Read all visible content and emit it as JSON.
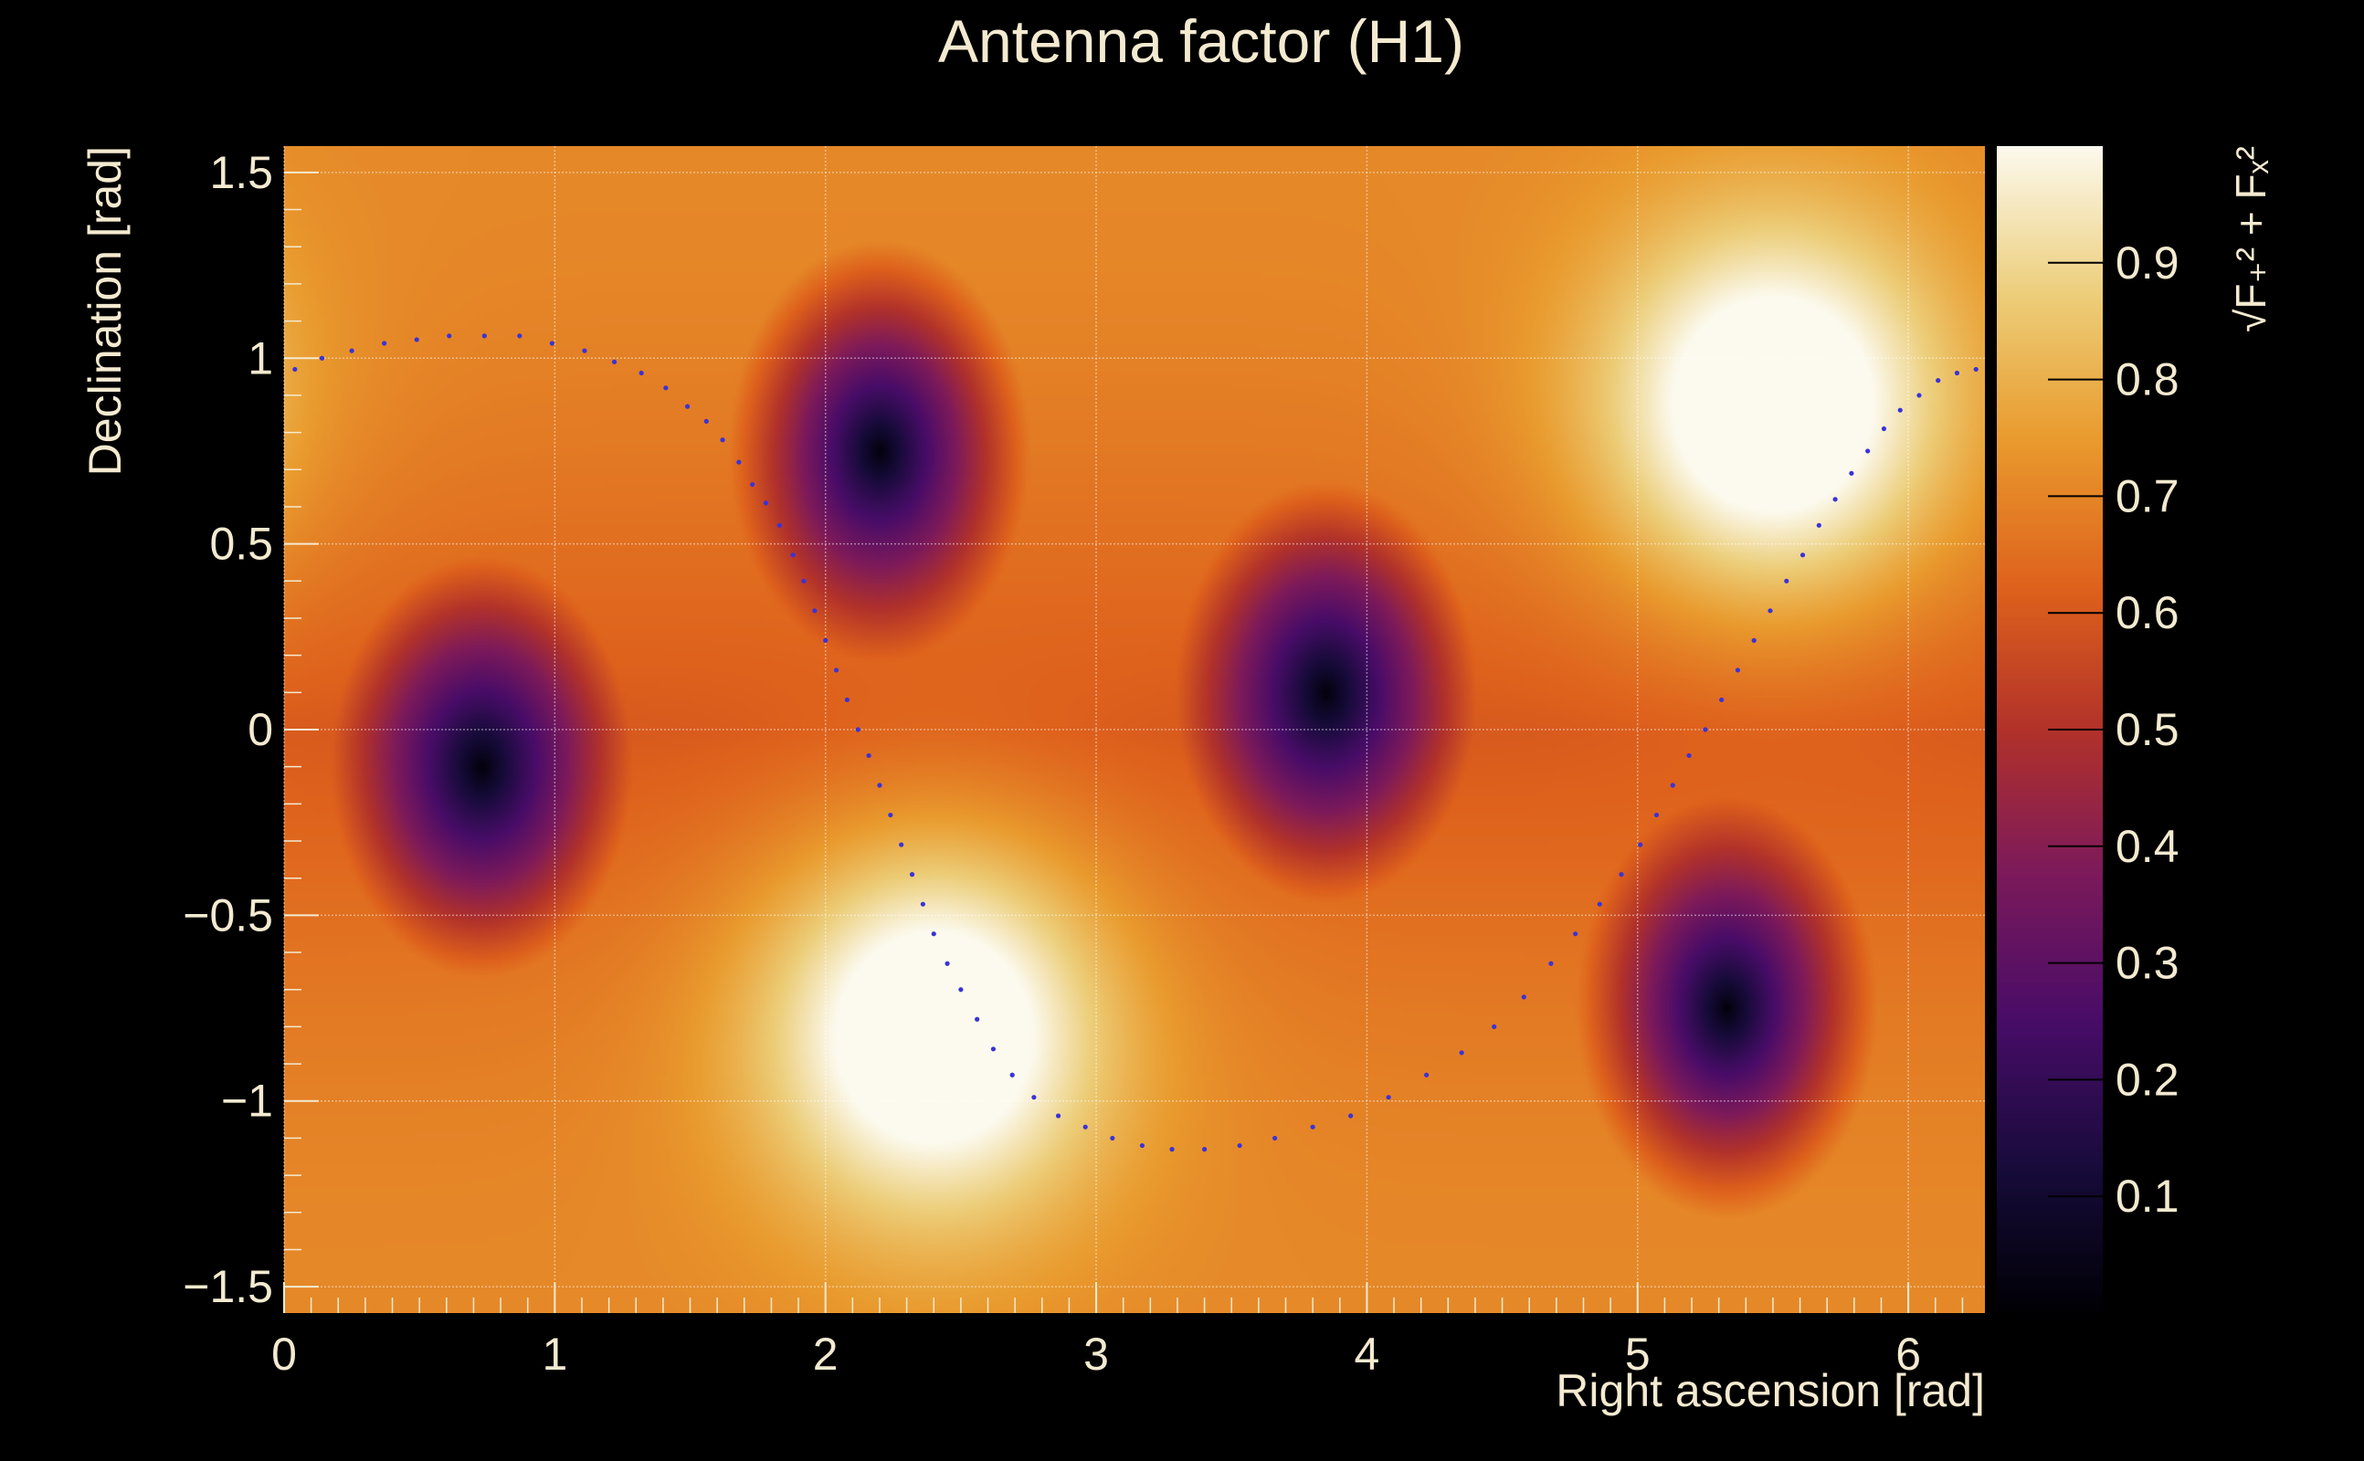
{
  "chart_data": {
    "type": "heatmap",
    "title": "Antenna factor (H1)",
    "xlabel": "Right ascension [rad]",
    "ylabel": "Declination [rad]",
    "colorbar_label": "√F₊² + Fₓ²",
    "xlim": [
      0,
      6.283
    ],
    "ylim": [
      -1.571,
      1.571
    ],
    "zlim": [
      0,
      1
    ],
    "x_ticks": [
      "0",
      "1",
      "2",
      "3",
      "4",
      "5",
      "6"
    ],
    "y_ticks": [
      "−1.5",
      "−1",
      "−0.5",
      "0",
      "0.5",
      "1",
      "1.5"
    ],
    "y_tick_values": [
      -1.5,
      -1,
      -0.5,
      0,
      0.5,
      1,
      1.5
    ],
    "colorbar_ticks": [
      "0.1",
      "0.2",
      "0.3",
      "0.4",
      "0.5",
      "0.6",
      "0.7",
      "0.8",
      "0.9"
    ],
    "colorbar_tick_values": [
      0.1,
      0.2,
      0.3,
      0.4,
      0.5,
      0.6,
      0.7,
      0.8,
      0.9
    ],
    "grid": true,
    "colormap": "inferno-like",
    "minima": [
      {
        "ra": 0.73,
        "dec": -0.1,
        "value": 0.0
      },
      {
        "ra": 2.2,
        "dec": 0.75,
        "value": 0.0
      },
      {
        "ra": 3.85,
        "dec": 0.1,
        "value": 0.0
      },
      {
        "ra": 5.33,
        "dec": -0.75,
        "value": 0.0
      }
    ],
    "maxima": [
      {
        "ra": 2.4,
        "dec": -0.8,
        "value": 1.0
      },
      {
        "ra": 5.5,
        "dec": 0.85,
        "value": 1.0
      }
    ],
    "dotted_curve": {
      "name": "",
      "color": "#3a33d6",
      "x": [
        0.04,
        0.14,
        0.25,
        0.37,
        0.49,
        0.61,
        0.74,
        0.87,
        0.99,
        1.11,
        1.22,
        1.32,
        1.41,
        1.49,
        1.56,
        1.62,
        1.68,
        1.73,
        1.78,
        1.83,
        1.88,
        1.92,
        1.96,
        2.0,
        2.04,
        2.08,
        2.12,
        2.16,
        2.2,
        2.24,
        2.28,
        2.32,
        2.36,
        2.4,
        2.45,
        2.5,
        2.56,
        2.62,
        2.69,
        2.77,
        2.86,
        2.96,
        3.06,
        3.17,
        3.28,
        3.4,
        3.53,
        3.66,
        3.8,
        3.94,
        4.08,
        4.22,
        4.35,
        4.47,
        4.58,
        4.68,
        4.77,
        4.86,
        4.94,
        5.01,
        5.07,
        5.13,
        5.19,
        5.25,
        5.31,
        5.37,
        5.43,
        5.49,
        5.55,
        5.61,
        5.67,
        5.73,
        5.79,
        5.85,
        5.91,
        5.97,
        6.04,
        6.11,
        6.18,
        6.25
      ],
      "y": [
        0.97,
        1.0,
        1.02,
        1.04,
        1.05,
        1.06,
        1.06,
        1.06,
        1.04,
        1.02,
        0.99,
        0.96,
        0.92,
        0.87,
        0.83,
        0.78,
        0.72,
        0.66,
        0.61,
        0.55,
        0.47,
        0.4,
        0.32,
        0.24,
        0.16,
        0.08,
        0.0,
        -0.07,
        -0.15,
        -0.23,
        -0.31,
        -0.39,
        -0.47,
        -0.55,
        -0.63,
        -0.7,
        -0.78,
        -0.86,
        -0.93,
        -0.99,
        -1.04,
        -1.07,
        -1.1,
        -1.12,
        -1.13,
        -1.13,
        -1.12,
        -1.1,
        -1.07,
        -1.04,
        -0.99,
        -0.93,
        -0.87,
        -0.8,
        -0.72,
        -0.63,
        -0.55,
        -0.47,
        -0.39,
        -0.31,
        -0.23,
        -0.15,
        -0.07,
        0.0,
        0.08,
        0.16,
        0.24,
        0.32,
        0.4,
        0.47,
        0.55,
        0.62,
        0.69,
        0.75,
        0.81,
        0.86,
        0.9,
        0.94,
        0.96,
        0.97
      ]
    }
  }
}
